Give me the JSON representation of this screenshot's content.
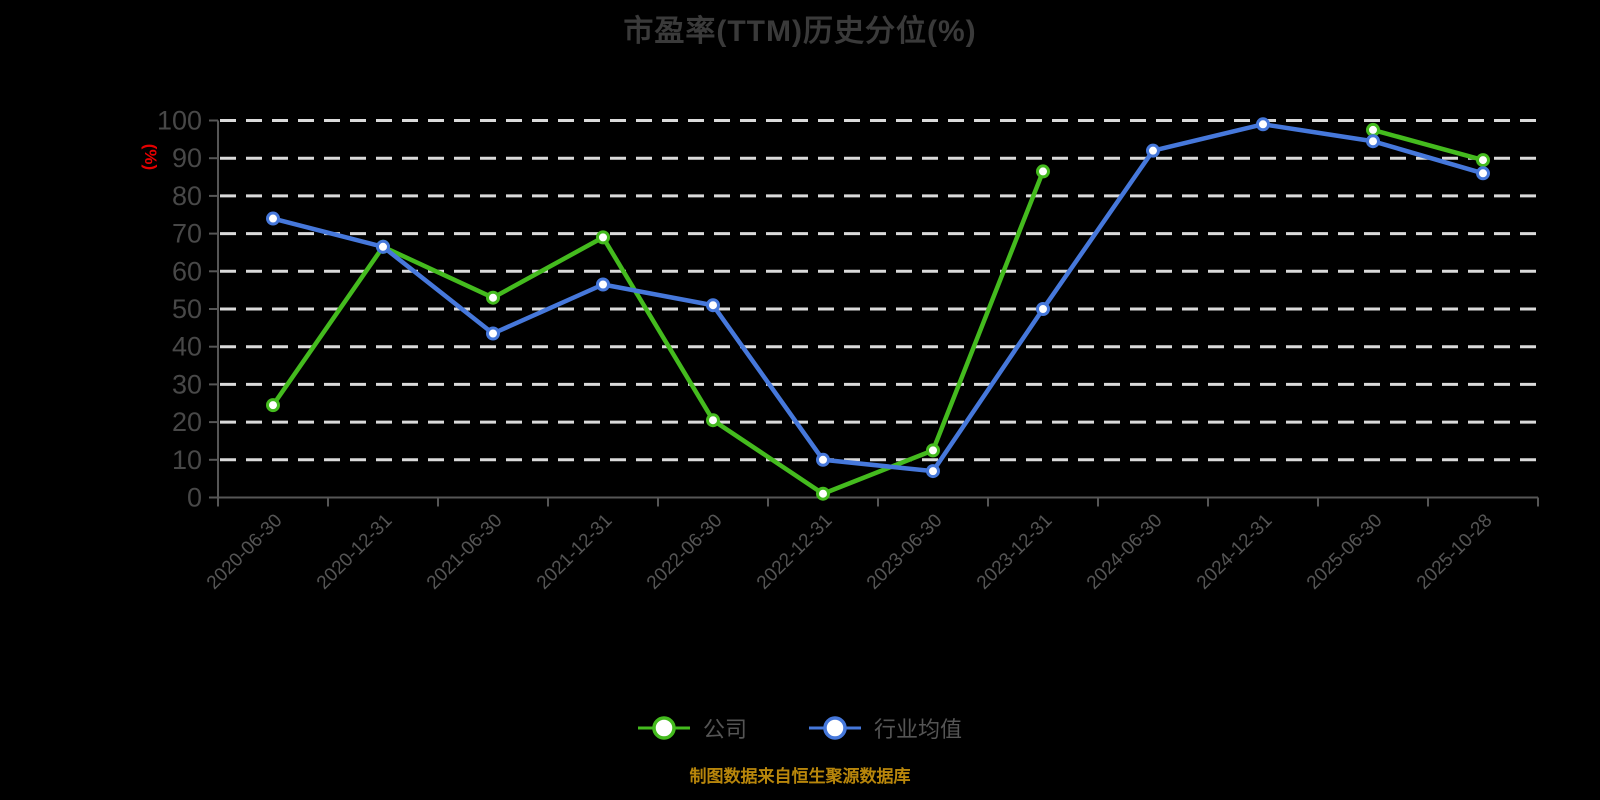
{
  "title": "市盈率(TTM)历史分位(%)",
  "y_axis_unit": "(%)",
  "caption": "制图数据来自恒生聚源数据库",
  "legend": {
    "company_label": "公司",
    "industry_label": "行业均值"
  },
  "colors": {
    "background": "#000000",
    "company": "#44bb1e",
    "industry": "#4678db",
    "marker_fill": "#ffffff",
    "grid": "#dadada",
    "axis": "#565656",
    "y_tick_label": "#484848",
    "x_tick_label": "#555555",
    "title_text": "#3a3a3a",
    "legend_text": "#555555",
    "unit_label": "#e60000",
    "caption_text": "#b8860b"
  },
  "chart_data": {
    "type": "line",
    "title": "市盈率(TTM)历史分位(%)",
    "ylabel": "(%)",
    "ylim": [
      0,
      100
    ],
    "y_ticks": [
      0,
      10,
      20,
      30,
      40,
      50,
      60,
      70,
      80,
      90,
      100
    ],
    "grid": "horizontal dashed",
    "legend_position": "bottom",
    "categories": [
      "2020-06-30",
      "2020-12-31",
      "2021-06-30",
      "2021-12-31",
      "2022-06-30",
      "2022-12-31",
      "2023-06-30",
      "2023-12-31",
      "2024-06-30",
      "2024-12-31",
      "2025-06-30",
      "2025-10-28"
    ],
    "series": [
      {
        "name": "公司",
        "color_key": "company",
        "values": [
          24.5,
          66.5,
          53,
          69,
          20.5,
          1,
          12.5,
          86.5,
          null,
          null,
          97.5,
          89.5
        ]
      },
      {
        "name": "行业均值",
        "color_key": "industry",
        "values": [
          74,
          66.5,
          43.5,
          56.5,
          51,
          10,
          7,
          50,
          92,
          99,
          94.5,
          86
        ]
      }
    ]
  }
}
